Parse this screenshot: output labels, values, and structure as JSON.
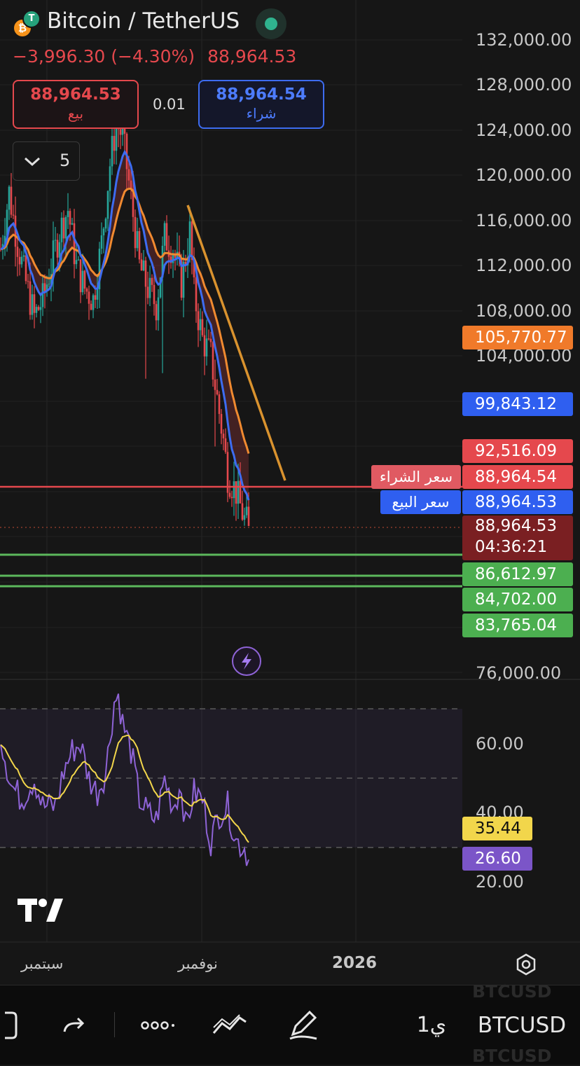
{
  "header": {
    "title": "Bitcoin / TetherUS",
    "change": "−3,996.30 (−4.30%)",
    "last_price": "88,964.53",
    "sell_price": "88,964.53",
    "sell_label": "بيع",
    "spread": "0.01",
    "buy_price": "88,964.54",
    "buy_label": "شراء",
    "interval_count": "5"
  },
  "price_axis": {
    "ticks": [
      "132,000.00",
      "128,000.00",
      "124,000.00",
      "120,000.00",
      "116,000.00",
      "112,000.00",
      "108,000.00",
      "104,000.00",
      "76,000.00"
    ]
  },
  "price_tags": {
    "ma_orange": "105,770.77",
    "ma_blue": "99,843.12",
    "red_level": "92,516.09",
    "buy_price": "88,964.54",
    "sell_price": "88,964.53",
    "last_price": "88,964.53",
    "countdown": "04:36:21",
    "support_1": "86,612.97",
    "support_2": "84,702.00",
    "support_3": "83,765.04"
  },
  "line_labels": {
    "buy_line": "سعر الشراء",
    "sell_line": "سعر البيع"
  },
  "rsi": {
    "axis_ticks": [
      "60.00",
      "40.00",
      "20.00"
    ],
    "signal_value": "35.44",
    "rsi_value": "26.60"
  },
  "time_axis": {
    "labels": [
      "سبتمبر",
      "نوفمبر",
      "2026"
    ]
  },
  "toolbar": {
    "interval": "1ي",
    "symbol": "BTCUSD",
    "ghost_symbol": "BTCUSD"
  },
  "colors": {
    "background": "#161616",
    "up": "#26a69a",
    "down": "#e5484d",
    "ma_blue": "#3d6cf0",
    "ma_orange": "#f08a30",
    "support_green": "#5cb85c",
    "rsi_line": "#8e63d6",
    "rsi_signal": "#f2d64b",
    "trendline": "#d9922e"
  }
}
